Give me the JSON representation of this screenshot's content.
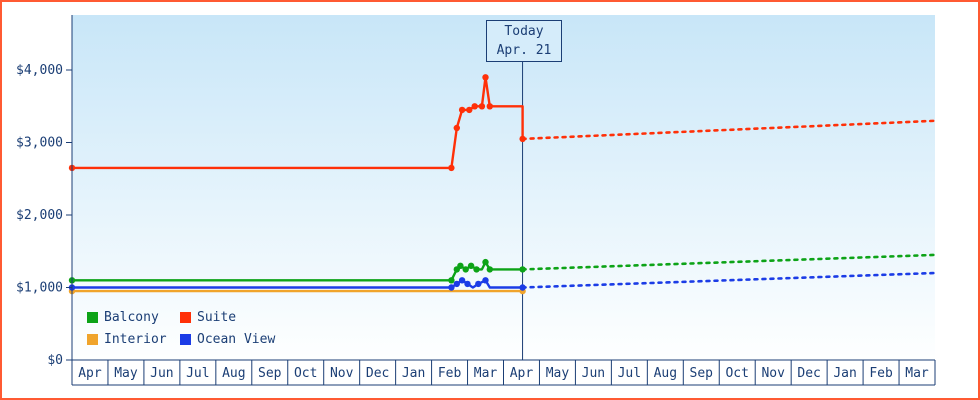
{
  "colors": {
    "frame_border": "#ff5a33",
    "axis": "#1b3e75",
    "plot_bg_top": "#c8e6f8",
    "plot_bg_bottom": "#feffff",
    "today_box_bg": "#d5ecfa",
    "strip_bg": "#ffffff"
  },
  "chart_data": {
    "type": "line",
    "x_labels": [
      "Apr",
      "May",
      "Jun",
      "Jul",
      "Aug",
      "Sep",
      "Oct",
      "Nov",
      "Dec",
      "Jan",
      "Feb",
      "Mar",
      "Apr",
      "May",
      "Jun",
      "Jul",
      "Aug",
      "Sep",
      "Oct",
      "Nov",
      "Dec",
      "Jan",
      "Feb",
      "Mar"
    ],
    "x_months_total": 24,
    "y_ticks": [
      {
        "label": "$0",
        "value": 0
      },
      {
        "label": "$1,000",
        "value": 1000
      },
      {
        "label": "$2,000",
        "value": 2000
      },
      {
        "label": "$3,000",
        "value": 3000
      },
      {
        "label": "$4,000",
        "value": 4000
      }
    ],
    "ylim": [
      0,
      4800
    ],
    "grid": false,
    "legend_position": "bottom-left",
    "today": {
      "label": "Today",
      "date": "Apr. 21",
      "month_x": 12.53
    },
    "series": [
      {
        "name": "Balcony",
        "color": "#0da317",
        "solid": [
          [
            0,
            1100
          ],
          [
            10.55,
            1100
          ],
          [
            10.7,
            1250
          ],
          [
            10.8,
            1300
          ],
          [
            10.95,
            1250
          ],
          [
            11.1,
            1300
          ],
          [
            11.25,
            1250
          ],
          [
            11.4,
            1250
          ],
          [
            11.5,
            1350
          ],
          [
            11.62,
            1250
          ],
          [
            12.53,
            1250
          ]
        ],
        "markers": [
          [
            0,
            1100
          ],
          [
            10.55,
            1100
          ],
          [
            10.7,
            1250
          ],
          [
            10.8,
            1300
          ],
          [
            10.95,
            1250
          ],
          [
            11.1,
            1300
          ],
          [
            11.25,
            1250
          ],
          [
            11.5,
            1350
          ],
          [
            11.62,
            1250
          ],
          [
            12.53,
            1250
          ]
        ],
        "projection": [
          [
            12.53,
            1250
          ],
          [
            24,
            1450
          ]
        ]
      },
      {
        "name": "Suite",
        "color": "#ff3008",
        "solid": [
          [
            0,
            2650
          ],
          [
            10.55,
            2650
          ],
          [
            10.7,
            3200
          ],
          [
            10.85,
            3450
          ],
          [
            11.05,
            3450
          ],
          [
            11.2,
            3500
          ],
          [
            11.4,
            3500
          ],
          [
            11.5,
            3900
          ],
          [
            11.62,
            3500
          ],
          [
            12.53,
            3500
          ],
          [
            12.53,
            3050
          ]
        ],
        "markers": [
          [
            0,
            2650
          ],
          [
            10.55,
            2650
          ],
          [
            10.7,
            3200
          ],
          [
            10.85,
            3450
          ],
          [
            11.05,
            3450
          ],
          [
            11.2,
            3500
          ],
          [
            11.4,
            3500
          ],
          [
            11.5,
            3900
          ],
          [
            11.62,
            3500
          ],
          [
            12.53,
            3050
          ]
        ],
        "projection": [
          [
            12.53,
            3050
          ],
          [
            24,
            3300
          ]
        ]
      },
      {
        "name": "Interior",
        "color": "#f0a42c",
        "solid": [
          [
            0,
            950
          ],
          [
            12.53,
            950
          ]
        ],
        "markers": [
          [
            0,
            950
          ],
          [
            12.53,
            950
          ]
        ],
        "projection": null
      },
      {
        "name": "Ocean View",
        "color": "#1b3ce6",
        "solid": [
          [
            0,
            1000
          ],
          [
            10.55,
            1000
          ],
          [
            10.7,
            1050
          ],
          [
            10.85,
            1100
          ],
          [
            11.0,
            1050
          ],
          [
            11.15,
            1000
          ],
          [
            11.3,
            1050
          ],
          [
            11.5,
            1100
          ],
          [
            11.62,
            1000
          ],
          [
            12.53,
            1000
          ]
        ],
        "markers": [
          [
            0,
            1000
          ],
          [
            10.55,
            1000
          ],
          [
            10.7,
            1050
          ],
          [
            10.85,
            1100
          ],
          [
            11.0,
            1050
          ],
          [
            11.3,
            1050
          ],
          [
            11.5,
            1100
          ],
          [
            12.53,
            1000
          ]
        ],
        "projection": [
          [
            12.53,
            1000
          ],
          [
            24,
            1200
          ]
        ]
      }
    ]
  }
}
